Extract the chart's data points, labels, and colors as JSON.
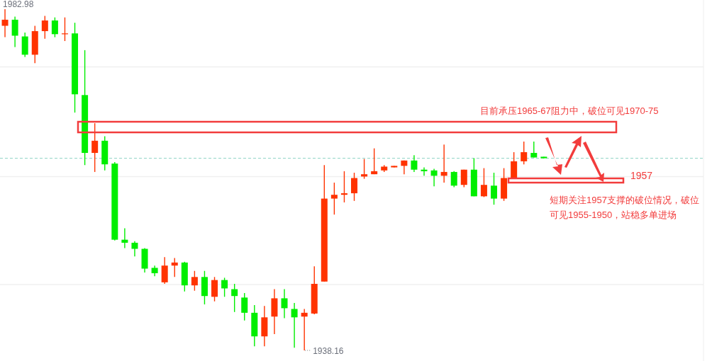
{
  "chart_data": {
    "type": "candlestick",
    "categories": [
      null,
      null,
      null,
      null,
      null,
      null,
      null,
      null,
      null,
      null,
      null,
      null,
      null,
      null,
      null,
      null,
      null,
      null,
      null,
      null,
      null,
      null,
      null,
      null,
      null,
      null,
      null,
      null,
      null,
      null,
      null,
      null,
      null,
      null,
      null,
      null,
      null,
      null,
      null,
      null,
      null,
      null,
      null,
      null,
      null,
      null,
      null,
      null,
      null,
      null,
      null,
      null,
      null,
      null,
      null
    ],
    "ohlc": [
      [
        1980.8,
        1982.98,
        1979.3,
        1981.6
      ],
      [
        1981.6,
        1982.0,
        1978.0,
        1979.5
      ],
      [
        1979.4,
        1979.9,
        1976.7,
        1977.0
      ],
      [
        1977.0,
        1980.8,
        1975.9,
        1980.1
      ],
      [
        1980.1,
        1982.1,
        1979.1,
        1981.5
      ],
      [
        1981.5,
        1981.9,
        1979.3,
        1979.7
      ],
      [
        1979.7,
        1981.9,
        1978.8,
        1979.8
      ],
      [
        1979.8,
        1981.2,
        1969.4,
        1971.8
      ],
      [
        1971.7,
        1977.6,
        1962.5,
        1964.1
      ],
      [
        1964.1,
        1968.0,
        1961.6,
        1965.7
      ],
      [
        1965.7,
        1966.3,
        1961.8,
        1962.6
      ],
      [
        1962.7,
        1962.9,
        1952.6,
        1952.7
      ],
      [
        1952.7,
        1954.2,
        1951.6,
        1952.3
      ],
      [
        1952.3,
        1952.5,
        1950.5,
        1951.5
      ],
      [
        1951.5,
        1951.6,
        1948.4,
        1948.9
      ],
      [
        1949.0,
        1949.3,
        1947.9,
        1948.3
      ],
      [
        1947.1,
        1950.4,
        1946.9,
        1949.3
      ],
      [
        1949.3,
        1950.3,
        1947.8,
        1949.7
      ],
      [
        1949.7,
        1949.8,
        1945.9,
        1946.7
      ],
      [
        1946.7,
        1948.6,
        1946.0,
        1947.8
      ],
      [
        1947.8,
        1948.6,
        1944.2,
        1945.3
      ],
      [
        1945.2,
        1947.8,
        1944.6,
        1947.4
      ],
      [
        1947.4,
        1947.7,
        1945.2,
        1946.3
      ],
      [
        1946.2,
        1946.9,
        1943.2,
        1945.3
      ],
      [
        1945.1,
        1945.7,
        1942.1,
        1943.1
      ],
      [
        1943.1,
        1944.1,
        1938.7,
        1940.0
      ],
      [
        1940.0,
        1944.0,
        1938.7,
        1942.5
      ],
      [
        1942.6,
        1946.2,
        1940.3,
        1945.0
      ],
      [
        1945.0,
        1946.2,
        1942.4,
        1943.7
      ],
      [
        1943.6,
        1944.4,
        1938.5,
        1942.5
      ],
      [
        1942.6,
        1943.6,
        1938.16,
        1943.1
      ],
      [
        1943.0,
        1949.2,
        1942.9,
        1946.9
      ],
      [
        1947.2,
        1962.5,
        1947.2,
        1958.1
      ],
      [
        1958.1,
        1960.2,
        1956.0,
        1958.6
      ],
      [
        1958.6,
        1961.7,
        1957.6,
        1958.8
      ],
      [
        1958.8,
        1961.5,
        1957.8,
        1960.8
      ],
      [
        1961.0,
        1963.3,
        1960.7,
        1961.3
      ],
      [
        1961.3,
        1964.7,
        1961.3,
        1961.7
      ],
      [
        1961.8,
        1962.5,
        1961.6,
        1962.3
      ],
      [
        1962.2,
        1962.4,
        1962.2,
        1962.4
      ],
      [
        1962.4,
        1963.1,
        1961.3,
        1963.1
      ],
      [
        1963.1,
        1963.8,
        1961.6,
        1961.9
      ],
      [
        1961.9,
        1962.2,
        1961.1,
        1961.7
      ],
      [
        1961.8,
        1962.0,
        1959.7,
        1961.1
      ],
      [
        1961.1,
        1965.2,
        1960.2,
        1961.6
      ],
      [
        1961.6,
        1961.7,
        1959.6,
        1959.8
      ],
      [
        1959.9,
        1961.9,
        1959.6,
        1961.9
      ],
      [
        1961.9,
        1963.4,
        1958.4,
        1958.4
      ],
      [
        1958.4,
        1962.1,
        1958.3,
        1959.9
      ],
      [
        1959.8,
        1961.5,
        1957.3,
        1958.1
      ],
      [
        1958.1,
        1962.1,
        1957.8,
        1960.8
      ],
      [
        1960.8,
        1964.2,
        1960.8,
        1963.0
      ],
      [
        1963.0,
        1965.6,
        1962.6,
        1964.2
      ],
      [
        1964.1,
        1965.6,
        1963.5,
        1963.5
      ],
      [
        1963.6,
        1963.6,
        1963.4,
        1963.4
      ]
    ],
    "colors": [
      "#ff3300",
      "#00ee00",
      "#00ee00",
      "#ff3300",
      "#ff3300",
      "#00ee00",
      "#ff3300",
      "#00ee00",
      "#00ee00",
      "#ff3300",
      "#00ee00",
      "#00ee00",
      "#00ee00",
      "#00ee00",
      "#00ee00",
      "#00ee00",
      "#ff3300",
      "#ff3300",
      "#00ee00",
      "#ff3300",
      "#00ee00",
      "#ff3300",
      "#00ee00",
      "#00ee00",
      "#00ee00",
      "#00ee00",
      "#ff3300",
      "#ff3300",
      "#00ee00",
      "#00ee00",
      "#ff3300",
      "#ff3300",
      "#ff3300",
      "#ff3300",
      "#ff3300",
      "#ff3300",
      "#ff3300",
      "#ff3300",
      "#ff3300",
      "#ff3300",
      "#ff3300",
      "#00ee00",
      "#00ee00",
      "#00ee00",
      "#ff3300",
      "#00ee00",
      "#ff3300",
      "#00ee00",
      "#ff3300",
      "#00ee00",
      "#ff3300",
      "#ff3300",
      "#ff3300",
      "#00ee00",
      "#00ee00"
    ],
    "yticks": [
      {
        "value": 1975.4,
        "label": null
      },
      {
        "value": 1961.0,
        "label": null
      },
      {
        "value": 1946.8,
        "label": null
      }
    ],
    "grid": "y",
    "ref_lines": [
      {
        "axis": "y",
        "value": 1963.4,
        "color": "#8fd3c6",
        "line_style": "dashed"
      }
    ],
    "annotations": [
      "1982.98",
      "1938.16",
      "目前承压1965-67阻力中，破位可见1970-75",
      "1957",
      "短期关注1957支撑的破位情况，破位可见1955-1950，站稳多单进场"
    ]
  }
}
